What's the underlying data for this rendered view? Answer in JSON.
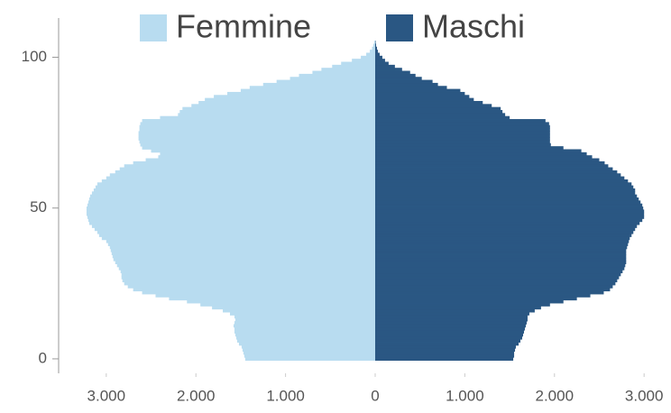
{
  "chart_data": {
    "type": "bar",
    "orientation": "horizontal",
    "y": [
      0,
      1,
      2,
      3,
      4,
      5,
      6,
      7,
      8,
      9,
      10,
      11,
      12,
      13,
      14,
      15,
      16,
      17,
      18,
      19,
      20,
      21,
      22,
      23,
      24,
      25,
      26,
      27,
      28,
      29,
      30,
      31,
      32,
      33,
      34,
      35,
      36,
      37,
      38,
      39,
      40,
      41,
      42,
      43,
      44,
      45,
      46,
      47,
      48,
      49,
      50,
      51,
      52,
      53,
      54,
      55,
      56,
      57,
      58,
      59,
      60,
      61,
      62,
      63,
      64,
      65,
      66,
      67,
      68,
      69,
      70,
      71,
      72,
      73,
      74,
      75,
      76,
      77,
      78,
      79,
      80,
      81,
      82,
      83,
      84,
      85,
      86,
      87,
      88,
      89,
      90,
      91,
      92,
      93,
      94,
      95,
      96,
      97,
      98,
      99,
      100,
      101,
      102,
      103,
      104,
      105
    ],
    "series": [
      {
        "name": "Femmine",
        "color": "#b8dcf0",
        "values": [
          -1450,
          -1460,
          -1470,
          -1480,
          -1490,
          -1520,
          -1540,
          -1550,
          -1560,
          -1570,
          -1570,
          -1580,
          -1570,
          -1560,
          -1570,
          -1620,
          -1700,
          -1820,
          -1950,
          -2100,
          -2300,
          -2450,
          -2600,
          -2700,
          -2760,
          -2800,
          -2820,
          -2830,
          -2830,
          -2840,
          -2860,
          -2880,
          -2900,
          -2920,
          -2930,
          -2940,
          -2950,
          -2960,
          -2980,
          -3000,
          -3050,
          -3080,
          -3100,
          -3130,
          -3160,
          -3190,
          -3200,
          -3210,
          -3220,
          -3220,
          -3220,
          -3210,
          -3200,
          -3190,
          -3180,
          -3160,
          -3140,
          -3120,
          -3100,
          -3050,
          -3000,
          -2960,
          -2900,
          -2850,
          -2800,
          -2700,
          -2560,
          -2420,
          -2400,
          -2500,
          -2600,
          -2620,
          -2630,
          -2640,
          -2640,
          -2640,
          -2630,
          -2630,
          -2620,
          -2600,
          -2400,
          -2200,
          -2180,
          -2150,
          -2050,
          -1970,
          -1900,
          -1800,
          -1650,
          -1500,
          -1400,
          -1250,
          -1100,
          -950,
          -850,
          -700,
          -600,
          -480,
          -380,
          -260,
          -160,
          -100,
          -60,
          -35,
          -20,
          -10
        ]
      },
      {
        "name": "Maschi",
        "color": "#2a5783",
        "values": [
          1540,
          1550,
          1550,
          1560,
          1570,
          1600,
          1620,
          1640,
          1650,
          1660,
          1670,
          1680,
          1690,
          1700,
          1700,
          1720,
          1780,
          1850,
          1950,
          2100,
          2250,
          2400,
          2550,
          2620,
          2650,
          2680,
          2700,
          2720,
          2740,
          2760,
          2780,
          2790,
          2800,
          2800,
          2800,
          2800,
          2800,
          2810,
          2820,
          2830,
          2840,
          2860,
          2880,
          2900,
          2920,
          2950,
          2980,
          3000,
          3000,
          3000,
          2990,
          2980,
          2960,
          2940,
          2920,
          2900,
          2900,
          2880,
          2860,
          2820,
          2780,
          2740,
          2700,
          2650,
          2600,
          2560,
          2500,
          2420,
          2360,
          2300,
          2100,
          1960,
          1950,
          1950,
          1950,
          1950,
          1950,
          1950,
          1940,
          1900,
          1500,
          1450,
          1420,
          1400,
          1300,
          1200,
          1100,
          1050,
          1000,
          950,
          800,
          700,
          640,
          520,
          450,
          390,
          300,
          220,
          150,
          110,
          80,
          50,
          30,
          20,
          10,
          5
        ]
      }
    ],
    "xlim": [
      -3300,
      3300
    ],
    "xticks": [
      {
        "value": -3000,
        "label": "3.000"
      },
      {
        "value": -2000,
        "label": "2.000"
      },
      {
        "value": -1000,
        "label": "1.000"
      },
      0,
      {
        "value": 1000,
        "label": "1.000"
      },
      {
        "value": 2000,
        "label": "2.000"
      },
      {
        "value": 3000,
        "label": "3.000"
      }
    ],
    "ylim": [
      -4.8,
      113
    ],
    "yticks": [
      0,
      50,
      100
    ],
    "legend": "top"
  }
}
